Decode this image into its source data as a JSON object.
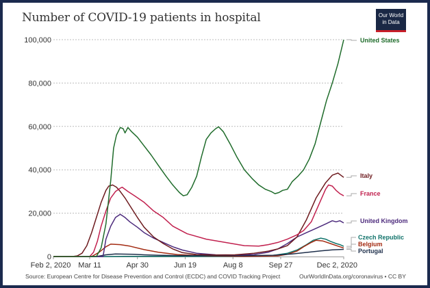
{
  "header": {
    "title": "Number of COVID-19 patients in hospital",
    "logo_line1": "Our World",
    "logo_line2": "in Data"
  },
  "footer": {
    "source": "Source: European Centre for Disease Prevention and Control (ECDC) and COVID Tracking Project",
    "credit": "OurWorldInData.org/coronavirus • CC BY"
  },
  "colors": {
    "frame": "#1b2a4e",
    "logo_bg": "#1a2845",
    "logo_accent": "#c81e29"
  },
  "chart_data": {
    "type": "line",
    "title": "Number of COVID-19 patients in hospital",
    "xlabel": "",
    "ylabel": "",
    "x_unit": "days since Feb 2, 2020",
    "xlim": [
      0,
      304
    ],
    "ylim": [
      0,
      100000
    ],
    "grid": true,
    "legend": "right",
    "y_ticks": [
      {
        "value": 0,
        "label": "0"
      },
      {
        "value": 20000,
        "label": "20,000"
      },
      {
        "value": 40000,
        "label": "40,000"
      },
      {
        "value": 60000,
        "label": "60,000"
      },
      {
        "value": 80000,
        "label": "80,000"
      },
      {
        "value": 100000,
        "label": "100,000"
      }
    ],
    "x_ticks": [
      {
        "value": 0,
        "label": "Feb 2, 2020"
      },
      {
        "value": 38,
        "label": "Mar 11"
      },
      {
        "value": 88,
        "label": "Apr 30"
      },
      {
        "value": 138,
        "label": "Jun 19"
      },
      {
        "value": 188,
        "label": "Aug 8"
      },
      {
        "value": 238,
        "label": "Sep 27"
      },
      {
        "value": 304,
        "label": "Dec 2, 2020"
      }
    ],
    "series": [
      {
        "name": "United States",
        "color": "#1e6b2a",
        "x": [
          45,
          50,
          55,
          60,
          63,
          66,
          70,
          73,
          75,
          78,
          82,
          88,
          95,
          102,
          110,
          118,
          125,
          132,
          136,
          140,
          145,
          150,
          155,
          160,
          165,
          170,
          173,
          178,
          185,
          192,
          200,
          208,
          215,
          222,
          228,
          232,
          236,
          240,
          245,
          250,
          256,
          262,
          268,
          274,
          280,
          286,
          292,
          298,
          304
        ],
        "y": [
          0,
          4000,
          15000,
          35000,
          50000,
          56000,
          59500,
          59000,
          57000,
          59500,
          57500,
          55000,
          51000,
          47000,
          42000,
          37000,
          33000,
          29500,
          28000,
          28500,
          32000,
          37000,
          46000,
          54000,
          57000,
          59000,
          59800,
          57500,
          52000,
          46000,
          40000,
          36000,
          33000,
          31000,
          30000,
          29000,
          29500,
          30500,
          31000,
          34500,
          37000,
          40000,
          45000,
          52000,
          62000,
          72000,
          80000,
          89000,
          100000
        ]
      },
      {
        "name": "Italy",
        "color": "#6d1a1e",
        "x": [
          0,
          20,
          25,
          30,
          35,
          40,
          45,
          50,
          55,
          58,
          62,
          66,
          70,
          75,
          80,
          88,
          95,
          105,
          115,
          125,
          135,
          150,
          170,
          190,
          210,
          225,
          235,
          245,
          255,
          265,
          275,
          285,
          292,
          298,
          304
        ],
        "y": [
          0,
          0,
          300,
          1500,
          5000,
          11000,
          18000,
          25000,
          30500,
          32500,
          33000,
          32000,
          30000,
          27000,
          23500,
          18000,
          13500,
          9000,
          6000,
          3500,
          1800,
          900,
          700,
          800,
          1500,
          2500,
          3500,
          5000,
          9000,
          17000,
          27000,
          34000,
          37500,
          38500,
          36500
        ]
      },
      {
        "name": "France",
        "color": "#c1204e",
        "x": [
          0,
          38,
          42,
          46,
          50,
          55,
          60,
          65,
          70,
          72,
          78,
          85,
          95,
          105,
          115,
          125,
          140,
          160,
          180,
          200,
          215,
          225,
          235,
          245,
          255,
          262,
          270,
          278,
          285,
          288,
          292,
          296,
          300,
          304
        ],
        "y": [
          0,
          0,
          2000,
          7000,
          14000,
          21000,
          27000,
          30000,
          31500,
          32000,
          30000,
          28000,
          25000,
          21000,
          18000,
          14000,
          10500,
          8000,
          6500,
          5000,
          4800,
          5500,
          6500,
          8000,
          10000,
          12000,
          16000,
          24000,
          31000,
          33000,
          32500,
          30500,
          29000,
          28000
        ]
      },
      {
        "name": "United Kingdom",
        "color": "#4c2a7c",
        "x": [
          0,
          52,
          55,
          60,
          65,
          70,
          75,
          80,
          88,
          95,
          105,
          115,
          125,
          135,
          150,
          170,
          190,
          210,
          225,
          235,
          245,
          255,
          265,
          275,
          285,
          292,
          296,
          300,
          304
        ],
        "y": [
          0,
          0,
          8000,
          14000,
          18000,
          19500,
          18000,
          16000,
          13500,
          11000,
          8500,
          6500,
          4500,
          3000,
          1500,
          800,
          700,
          900,
          2000,
          3500,
          6000,
          9000,
          11000,
          13000,
          15000,
          16500,
          16000,
          16500,
          15500
        ]
      },
      {
        "name": "Czech Republic",
        "color": "#11736b",
        "x": [
          0,
          55,
          75,
          100,
          140,
          190,
          230,
          245,
          255,
          265,
          272,
          280,
          285,
          290,
          296,
          300,
          304
        ],
        "y": [
          0,
          0,
          100,
          100,
          50,
          100,
          500,
          1500,
          3000,
          5500,
          7500,
          8500,
          8000,
          7000,
          6000,
          5500,
          4700
        ]
      },
      {
        "name": "Belgium",
        "color": "#a32b12",
        "x": [
          0,
          40,
          48,
          55,
          60,
          70,
          80,
          95,
          110,
          130,
          160,
          200,
          235,
          245,
          255,
          262,
          270,
          275,
          282,
          290,
          298,
          304
        ],
        "y": [
          0,
          0,
          2000,
          4500,
          5700,
          5500,
          4800,
          3200,
          2000,
          900,
          300,
          100,
          300,
          1000,
          2500,
          4500,
          6500,
          7500,
          7200,
          6000,
          4800,
          3900
        ]
      },
      {
        "name": "Portugal",
        "color": "#1d2e4a",
        "x": [
          0,
          45,
          55,
          65,
          75,
          85,
          95,
          110,
          130,
          160,
          200,
          230,
          250,
          265,
          280,
          292,
          304
        ],
        "y": [
          0,
          0,
          800,
          1200,
          1100,
          1000,
          800,
          600,
          450,
          450,
          400,
          600,
          1200,
          1900,
          2600,
          3100,
          3300
        ]
      }
    ]
  }
}
